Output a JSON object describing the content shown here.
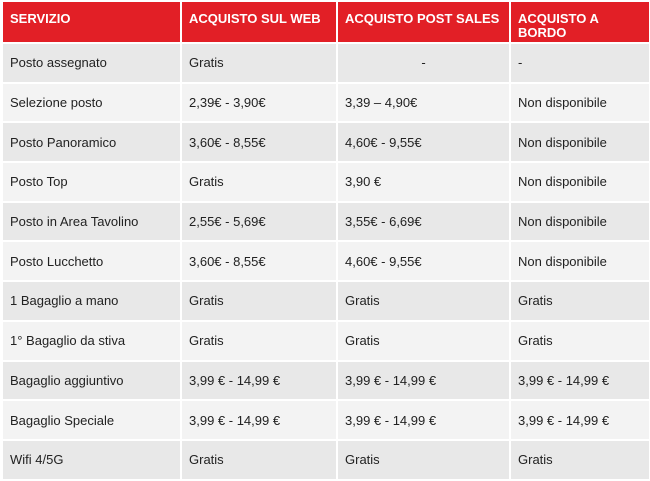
{
  "table": {
    "headers": [
      "SERVIZIO",
      "ACQUISTO SUL WEB",
      "ACQUISTO POST SALES",
      "ACQUISTO A BORDO"
    ],
    "rows": [
      [
        "Posto assegnato",
        "Gratis",
        "-",
        "-"
      ],
      [
        "Selezione posto",
        "2,39€ - 3,90€",
        "3,39 – 4,90€",
        "Non disponibile"
      ],
      [
        "Posto Panoramico",
        "3,60€ - 8,55€",
        "4,60€ - 9,55€",
        "Non disponibile"
      ],
      [
        "Posto Top",
        "Gratis",
        "3,90 €",
        "Non disponibile"
      ],
      [
        "Posto in Area Tavolino",
        "2,55€ - 5,69€",
        "3,55€ - 6,69€",
        "Non disponibile"
      ],
      [
        "Posto Lucchetto",
        "3,60€ - 8,55€",
        "4,60€ - 9,55€",
        "Non disponibile"
      ],
      [
        "1 Bagaglio a mano",
        "Gratis",
        "Gratis",
        "Gratis"
      ],
      [
        "1° Bagaglio da stiva",
        "Gratis",
        "Gratis",
        "Gratis"
      ],
      [
        "Bagaglio aggiuntivo",
        " 3,99 € - 14,99 €",
        " 3,99 € - 14,99 €",
        " 3,99 € - 14,99 €"
      ],
      [
        "Bagaglio Speciale",
        " 3,99 € - 14,99 €",
        " 3,99 € - 14,99 €",
        " 3,99 € - 14,99 €"
      ],
      [
        "Wifi 4/5G",
        "Gratis",
        "Gratis",
        "Gratis"
      ]
    ]
  },
  "colors": {
    "header_bg": "#e21f26",
    "header_text": "#ffffff",
    "row_dark": "#e8e8e8",
    "row_light": "#f3f3f3"
  }
}
